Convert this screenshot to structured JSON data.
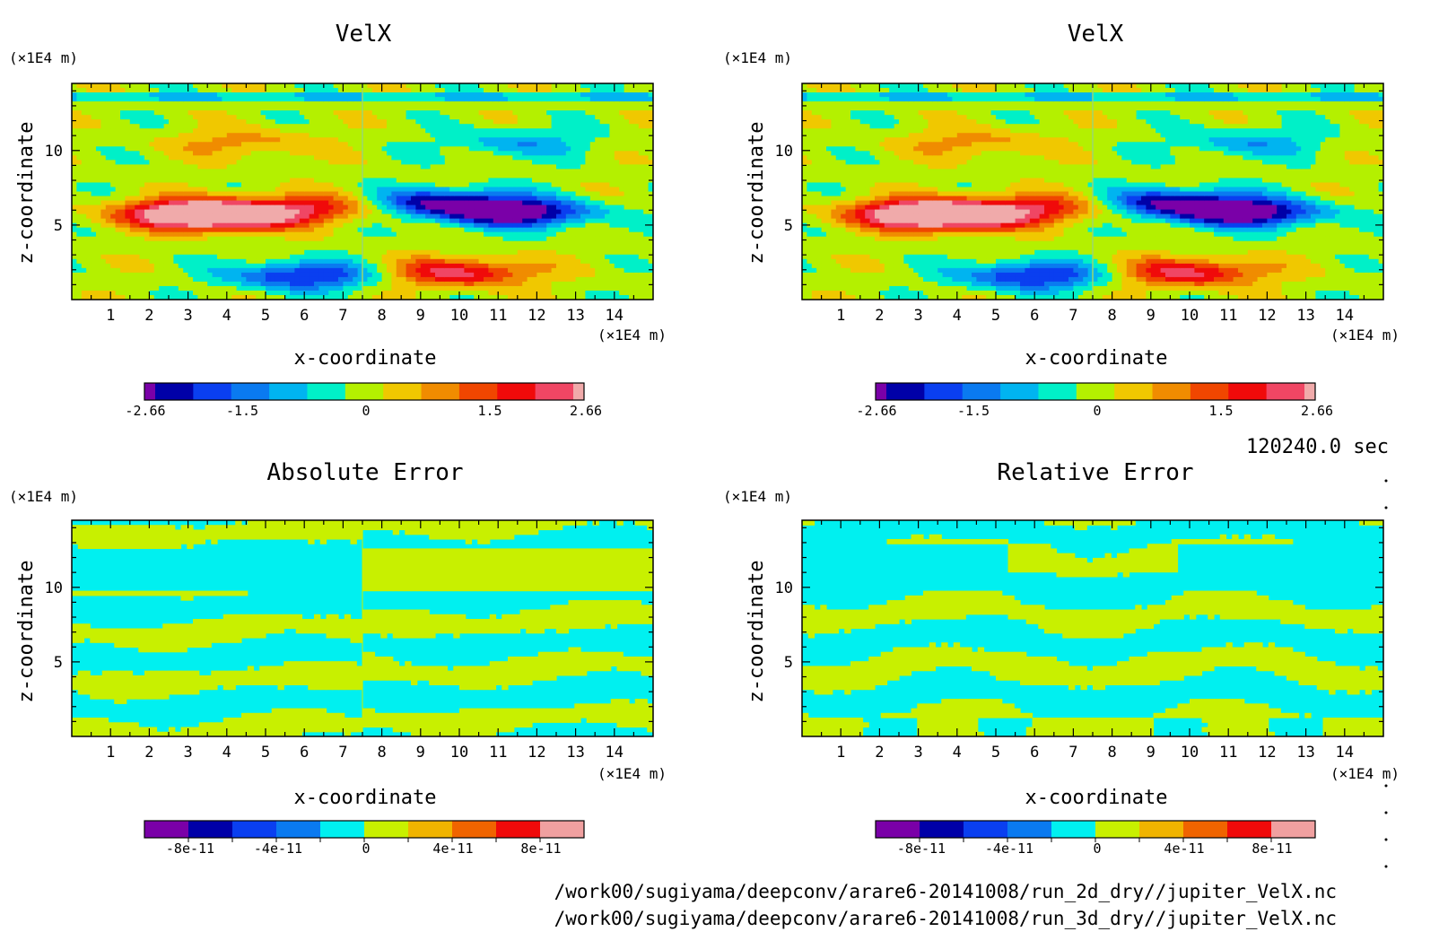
{
  "colors": {
    "velx_scale": [
      "#7a00a8",
      "#0000a8",
      "#0a3ff0",
      "#0a7af0",
      "#00b4f0",
      "#00f0c8",
      "#b4f000",
      "#f0c800",
      "#f08c00",
      "#f04600",
      "#f00a0a",
      "#f04664",
      "#f0aaaa"
    ],
    "error_scale": [
      "#7a00a8",
      "#0000a8",
      "#0a3ff0",
      "#0a7af0",
      "#00f0f0",
      "#c8f000",
      "#f0b400",
      "#f06400",
      "#f00a0a",
      "#f0a0a0"
    ]
  },
  "time_label": "120240.0 sec",
  "files": [
    "/work00/sugiyama/deepconv/arare6-20141008/run_2d_dry//jupiter_VelX.nc",
    "/work00/sugiyama/deepconv/arare6-20141008/run_3d_dry//jupiter_VelX.nc"
  ],
  "chart_data": [
    {
      "type": "heatmap",
      "title": "VelX",
      "xlabel": "x-coordinate",
      "ylabel": "z-coordinate",
      "x_unit": "(×1E4 m)",
      "y_unit": "(×1E4 m)",
      "xlim": [
        0,
        15
      ],
      "ylim": [
        0,
        14.5
      ],
      "xticks": [
        "1",
        "2",
        "3",
        "4",
        "5",
        "6",
        "7",
        "8",
        "9",
        "10",
        "11",
        "12",
        "13",
        "14"
      ],
      "yticks": [
        "5",
        "10"
      ],
      "colorbar": {
        "min": -2.66,
        "max": 2.66,
        "labels": [
          "-2.66",
          "-1.5",
          "0",
          "1.5",
          "2.66"
        ],
        "bins": 13
      },
      "fields": [
        {
          "x": 4.0,
          "z": 5.6,
          "value": 2.6
        },
        {
          "x": 3.0,
          "z": 5.8,
          "value": 2.1
        },
        {
          "x": 6.5,
          "z": 6.2,
          "value": 1.4
        },
        {
          "x": 11.5,
          "z": 5.8,
          "value": -2.6
        },
        {
          "x": 9.5,
          "z": 6.5,
          "value": -2.2
        },
        {
          "x": 6.0,
          "z": 1.6,
          "value": -2.0
        },
        {
          "x": 10.0,
          "z": 1.8,
          "value": 2.0
        },
        {
          "x": 4.5,
          "z": 10.5,
          "value": 0.8
        },
        {
          "x": 11.5,
          "z": 10.5,
          "value": -0.9
        }
      ]
    },
    {
      "type": "heatmap",
      "title": "VelX",
      "xlabel": "x-coordinate",
      "ylabel": "z-coordinate",
      "x_unit": "(×1E4 m)",
      "y_unit": "(×1E4 m)",
      "xlim": [
        0,
        15
      ],
      "ylim": [
        0,
        14.5
      ],
      "xticks": [
        "1",
        "2",
        "3",
        "4",
        "5",
        "6",
        "7",
        "8",
        "9",
        "10",
        "11",
        "12",
        "13",
        "14"
      ],
      "yticks": [
        "5",
        "10"
      ],
      "colorbar": {
        "min": -2.66,
        "max": 2.66,
        "labels": [
          "-2.66",
          "-1.5",
          "0",
          "1.5",
          "2.66"
        ],
        "bins": 13
      },
      "fields": [
        {
          "x": 4.0,
          "z": 5.6,
          "value": 2.6
        },
        {
          "x": 3.0,
          "z": 5.8,
          "value": 2.1
        },
        {
          "x": 6.5,
          "z": 6.2,
          "value": 1.4
        },
        {
          "x": 11.5,
          "z": 5.8,
          "value": -2.6
        },
        {
          "x": 9.5,
          "z": 6.5,
          "value": -2.2
        },
        {
          "x": 6.0,
          "z": 1.6,
          "value": -2.0
        },
        {
          "x": 10.0,
          "z": 1.8,
          "value": 2.0
        },
        {
          "x": 4.5,
          "z": 10.5,
          "value": 0.8
        },
        {
          "x": 11.5,
          "z": 10.5,
          "value": -0.9
        }
      ]
    },
    {
      "type": "heatmap",
      "title": "Absolute Error",
      "xlabel": "x-coordinate",
      "ylabel": "z-coordinate",
      "x_unit": "(×1E4 m)",
      "y_unit": "(×1E4 m)",
      "xlim": [
        0,
        15
      ],
      "ylim": [
        0,
        14.5
      ],
      "xticks": [
        "1",
        "2",
        "3",
        "4",
        "5",
        "6",
        "7",
        "8",
        "9",
        "10",
        "11",
        "12",
        "13",
        "14"
      ],
      "yticks": [
        "5",
        "10"
      ],
      "colorbar": {
        "labels": [
          "-8e-11",
          "-4e-11",
          "0",
          "4e-11",
          "8e-11"
        ],
        "bins": 10
      }
    },
    {
      "type": "heatmap",
      "title": "Relative Error",
      "xlabel": "x-coordinate",
      "ylabel": "z-coordinate",
      "x_unit": "(×1E4 m)",
      "y_unit": "(×1E4 m)",
      "xlim": [
        0,
        15
      ],
      "ylim": [
        0,
        14.5
      ],
      "xticks": [
        "1",
        "2",
        "3",
        "4",
        "5",
        "6",
        "7",
        "8",
        "9",
        "10",
        "11",
        "12",
        "13",
        "14"
      ],
      "yticks": [
        "5",
        "10"
      ],
      "colorbar": {
        "labels": [
          "-8e-11",
          "-4e-11",
          "0",
          "4e-11",
          "8e-11"
        ],
        "bins": 10
      }
    }
  ]
}
